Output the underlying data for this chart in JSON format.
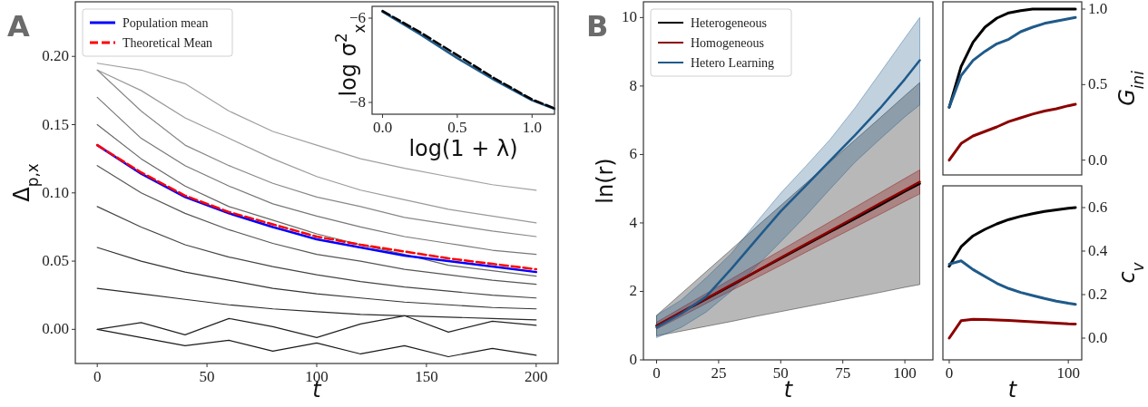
{
  "chart_data": [
    {
      "type": "line",
      "title": "A",
      "xlabel": "t",
      "ylabel": "Δ$_{p,x}$",
      "xlim": [
        -10,
        210
      ],
      "ylim": [
        -0.025,
        0.24
      ],
      "xticks": [
        0,
        50,
        100,
        150,
        200
      ],
      "yticks": [
        {
          "value": 0,
          "label": "0.00"
        },
        {
          "value": 0.05,
          "label": "0.05"
        },
        {
          "value": 0.1,
          "label": "0.10"
        },
        {
          "value": 0.15,
          "label": "0.15"
        },
        {
          "value": 0.2,
          "label": "0.20"
        }
      ],
      "legend": "top left",
      "x": [
        0,
        20,
        40,
        60,
        80,
        100,
        120,
        140,
        160,
        180,
        200
      ],
      "series": [
        {
          "color": "#a0a0a0",
          "values": [
            0.195,
            0.19,
            0.18,
            0.16,
            0.145,
            0.135,
            0.125,
            0.118,
            0.112,
            0.106,
            0.102
          ]
        },
        {
          "color": "#999999",
          "values": [
            0.19,
            0.175,
            0.155,
            0.14,
            0.125,
            0.112,
            0.102,
            0.095,
            0.088,
            0.083,
            0.078
          ]
        },
        {
          "color": "#888888",
          "values": [
            0.19,
            0.16,
            0.135,
            0.12,
            0.107,
            0.097,
            0.09,
            0.082,
            0.077,
            0.072,
            0.068
          ]
        },
        {
          "color": "#777777",
          "values": [
            0.17,
            0.14,
            0.12,
            0.105,
            0.092,
            0.083,
            0.075,
            0.068,
            0.063,
            0.058,
            0.055
          ]
        },
        {
          "color": "#666666",
          "values": [
            0.15,
            0.125,
            0.105,
            0.09,
            0.08,
            0.07,
            0.062,
            0.055,
            0.047,
            0.043,
            0.039
          ]
        },
        {
          "color": "#555555",
          "values": [
            0.12,
            0.1,
            0.085,
            0.073,
            0.063,
            0.055,
            0.05,
            0.044,
            0.04,
            0.036,
            0.033
          ]
        },
        {
          "color": "#444444",
          "values": [
            0.09,
            0.075,
            0.062,
            0.053,
            0.046,
            0.04,
            0.035,
            0.031,
            0.028,
            0.025,
            0.023
          ]
        },
        {
          "color": "#333333",
          "values": [
            0.06,
            0.05,
            0.042,
            0.036,
            0.03,
            0.026,
            0.023,
            0.02,
            0.018,
            0.016,
            0.015
          ]
        },
        {
          "color": "#2a2a2a",
          "values": [
            0.03,
            0.026,
            0.022,
            0.018,
            0.015,
            0.013,
            0.011,
            0.01,
            0.009,
            0.008,
            0.007
          ]
        },
        {
          "color": "#222222",
          "values": [
            0.0,
            0.005,
            -0.004,
            0.008,
            0.002,
            -0.006,
            0.004,
            0.01,
            -0.002,
            0.006,
            0.003
          ]
        },
        {
          "color": "#1a1a1a",
          "values": [
            0.0,
            -0.006,
            -0.012,
            -0.008,
            -0.016,
            -0.01,
            -0.018,
            -0.012,
            -0.02,
            -0.014,
            -0.019
          ]
        },
        {
          "name": "Population mean",
          "color": "#0000ff",
          "values": [
            0.135,
            0.114,
            0.097,
            0.085,
            0.075,
            0.066,
            0.06,
            0.054,
            0.05,
            0.046,
            0.042
          ]
        },
        {
          "name": "Theoretical Mean",
          "color": "#ff0000",
          "line_style": "dashed",
          "values": [
            0.135,
            0.115,
            0.098,
            0.086,
            0.077,
            0.068,
            0.062,
            0.057,
            0.052,
            0.048,
            0.044
          ]
        }
      ]
    },
    {
      "type": "line",
      "xlabel": "log(1 + λ)",
      "ylabel": "log σ$^{2}$$_{x}$",
      "xlim": [
        -0.07,
        1.15
      ],
      "ylim": [
        -8.28,
        -5.72
      ],
      "xticks": [
        {
          "value": 0,
          "label": "0.0"
        },
        {
          "value": 0.5,
          "label": "0.5"
        },
        {
          "value": 1,
          "label": "1.0"
        }
      ],
      "yticks": [
        {
          "value": -6,
          "label": "−6"
        },
        {
          "value": -8,
          "label": "−8"
        }
      ],
      "x": [
        0,
        0.25,
        0.5,
        0.75,
        1.0,
        1.15
      ],
      "series": [
        {
          "color": "#1f5a8a",
          "values": [
            -5.85,
            -6.38,
            -6.95,
            -7.47,
            -7.95,
            -8.15
          ]
        },
        {
          "color": "#000000",
          "line_style": "dashed",
          "values": [
            -5.83,
            -6.33,
            -6.88,
            -7.43,
            -7.93,
            -8.14
          ]
        }
      ]
    },
    {
      "type": "line",
      "title": "B",
      "xlabel": "t",
      "ylabel": "ln(r)",
      "xlim": [
        -5.3,
        111.3
      ],
      "ylim": [
        0,
        10.46
      ],
      "xticks": [
        0,
        25,
        50,
        75,
        100
      ],
      "yticks": [
        0,
        2,
        4,
        6,
        8,
        10
      ],
      "legend": "top left",
      "x": [
        0,
        10,
        20,
        30,
        40,
        50,
        60,
        70,
        80,
        90,
        100,
        106
      ],
      "series": [
        {
          "name": "Heterogeneous",
          "color": "#000000",
          "values": [
            1.0,
            1.39,
            1.78,
            2.17,
            2.57,
            2.96,
            3.35,
            3.74,
            4.13,
            4.52,
            4.92,
            5.15
          ],
          "lower": [
            0.7,
            0.84,
            0.98,
            1.12,
            1.27,
            1.41,
            1.55,
            1.69,
            1.83,
            1.97,
            2.12,
            2.2
          ],
          "upper": [
            1.3,
            1.94,
            2.58,
            3.22,
            3.87,
            4.51,
            5.15,
            5.79,
            6.43,
            7.07,
            7.72,
            8.1
          ]
        },
        {
          "name": "Homogeneous",
          "color": "#8b0000",
          "values": [
            1.0,
            1.4,
            1.79,
            2.19,
            2.58,
            2.98,
            3.38,
            3.77,
            4.17,
            4.57,
            4.96,
            5.2
          ],
          "lower": [
            0.9,
            1.27,
            1.65,
            2.02,
            2.39,
            2.76,
            3.14,
            3.51,
            3.88,
            4.25,
            4.63,
            4.85
          ],
          "upper": [
            1.1,
            1.52,
            1.94,
            2.36,
            2.78,
            3.2,
            3.62,
            4.04,
            4.46,
            4.88,
            5.3,
            5.55
          ]
        },
        {
          "name": "Hetero Learning",
          "color": "#1f5a8a",
          "values": [
            0.95,
            1.35,
            1.85,
            2.65,
            3.5,
            4.34,
            5.08,
            5.83,
            6.57,
            7.35,
            8.2,
            8.75
          ],
          "lower": [
            0.65,
            0.95,
            1.4,
            2.0,
            2.72,
            3.45,
            4.2,
            5.0,
            5.78,
            6.45,
            7.1,
            7.45
          ],
          "upper": [
            1.3,
            1.75,
            2.4,
            3.1,
            4.0,
            4.87,
            5.65,
            6.45,
            7.37,
            8.38,
            9.4,
            10.0
          ]
        }
      ]
    },
    {
      "type": "line",
      "y2label": "G$_{ini}$",
      "xlim": [
        -5.3,
        111.3
      ],
      "y2lim": [
        -0.098,
        1.048
      ],
      "y2ticks": [
        {
          "value": 0,
          "label": "0.0"
        },
        {
          "value": 0.5,
          "label": "0.5"
        },
        {
          "value": 1,
          "label": "1.0"
        }
      ],
      "tick_labels": "y",
      "x": [
        0,
        10,
        20,
        30,
        40,
        50,
        60,
        70,
        80,
        90,
        100,
        106
      ],
      "series": [
        {
          "color": "#000000",
          "axis": "y2",
          "values": [
            0.35,
            0.62,
            0.78,
            0.88,
            0.94,
            0.975,
            0.99,
            1.0,
            1.0,
            1.0,
            1.0,
            1.0
          ]
        },
        {
          "color": "#8b0000",
          "axis": "y2",
          "values": [
            0.0,
            0.11,
            0.16,
            0.19,
            0.22,
            0.255,
            0.28,
            0.305,
            0.325,
            0.34,
            0.36,
            0.37
          ]
        },
        {
          "color": "#1f5a8a",
          "axis": "y2",
          "values": [
            0.35,
            0.56,
            0.66,
            0.72,
            0.77,
            0.8,
            0.85,
            0.88,
            0.905,
            0.92,
            0.935,
            0.944
          ]
        }
      ]
    },
    {
      "type": "line",
      "xlabel": "t",
      "y2label": "c$_{v}$",
      "xlim": [
        -5.3,
        111.3
      ],
      "y2lim": [
        -0.1,
        0.7
      ],
      "xticks": [
        0,
        100
      ],
      "y2ticks": [
        {
          "value": 0,
          "label": "0.0"
        },
        {
          "value": 0.2,
          "label": "0.2"
        },
        {
          "value": 0.4,
          "label": "0.4"
        },
        {
          "value": 0.6,
          "label": "0.6"
        }
      ],
      "x": [
        0,
        10,
        20,
        30,
        40,
        50,
        60,
        70,
        80,
        90,
        100,
        106
      ],
      "series": [
        {
          "color": "#000000",
          "axis": "y2",
          "values": [
            0.33,
            0.42,
            0.47,
            0.5,
            0.525,
            0.545,
            0.56,
            0.572,
            0.582,
            0.59,
            0.597,
            0.6
          ]
        },
        {
          "color": "#8b0000",
          "axis": "y2",
          "values": [
            0.0,
            0.08,
            0.086,
            0.085,
            0.083,
            0.081,
            0.078,
            0.075,
            0.072,
            0.069,
            0.066,
            0.065
          ]
        },
        {
          "color": "#1f5a8a",
          "axis": "y2",
          "values": [
            0.34,
            0.355,
            0.315,
            0.283,
            0.252,
            0.228,
            0.21,
            0.196,
            0.182,
            0.17,
            0.16,
            0.155
          ]
        }
      ]
    }
  ]
}
